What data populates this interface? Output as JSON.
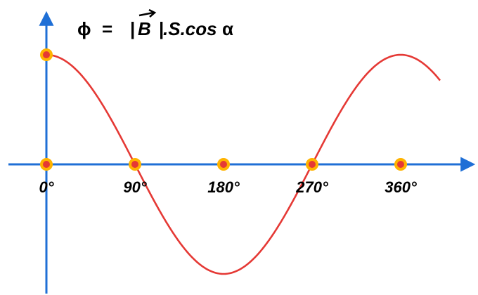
{
  "chart_data": {
    "type": "line",
    "formula": {
      "phi": "ϕ",
      "equals": "=",
      "bar_left": "|",
      "vector": "B",
      "bar_right": "|",
      "rest": ".S.cos",
      "alpha": "α"
    },
    "x_ticks": [
      "0°",
      "90°",
      "180°",
      "270°",
      "360°"
    ],
    "marker_x_deg": [
      0,
      90,
      180,
      270,
      360
    ],
    "series": [
      {
        "function": "cos",
        "x_start_deg": 0,
        "x_end_deg": 400,
        "amplitude": 1
      }
    ],
    "highlight_points": [
      {
        "x": 0,
        "y": 1
      },
      {
        "x": 0,
        "y": 0
      },
      {
        "x": 90,
        "y": 0
      },
      {
        "x": 180,
        "y": 0
      },
      {
        "x": 270,
        "y": 0
      },
      {
        "x": 360,
        "y": 0
      }
    ],
    "colors": {
      "axis": "#1f6fd6",
      "curve": "#e53935",
      "marker_fill": "#e53935",
      "marker_stroke": "#ffb300"
    }
  }
}
